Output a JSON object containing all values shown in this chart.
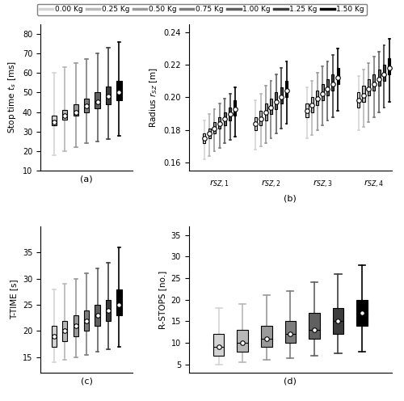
{
  "legend_labels": [
    "0.00 Kg",
    "0.25 Kg",
    "0.50 Kg",
    "0.75 Kg",
    "1.00 Kg",
    "1.25 Kg",
    "1.50 Kg"
  ],
  "colors": [
    "#d4d4d4",
    "#b8b8b8",
    "#9a9a9a",
    "#7d7d7d",
    "#606060",
    "#3c3c3c",
    "#000000"
  ],
  "subplot_a": {
    "ylabel": "Stop time $t_s$ [ms]",
    "ylim": [
      10,
      85
    ],
    "yticks": [
      10,
      20,
      30,
      40,
      50,
      60,
      70,
      80
    ],
    "xlabel": "(a)",
    "boxes": [
      {
        "median": 35,
        "q1": 33,
        "q3": 38,
        "whislo": 18,
        "whishi": 60,
        "mean": 35
      },
      {
        "median": 38,
        "q1": 36,
        "q3": 41,
        "whislo": 20,
        "whishi": 63,
        "mean": 38
      },
      {
        "median": 40,
        "q1": 38,
        "q3": 44,
        "whislo": 22,
        "whishi": 65,
        "mean": 40
      },
      {
        "median": 43,
        "q1": 40,
        "q3": 47,
        "whislo": 24,
        "whishi": 67,
        "mean": 43
      },
      {
        "median": 45,
        "q1": 42,
        "q3": 50,
        "whislo": 25,
        "whishi": 70,
        "mean": 45
      },
      {
        "median": 48,
        "q1": 44,
        "q3": 53,
        "whislo": 26,
        "whishi": 73,
        "mean": 48
      },
      {
        "median": 50,
        "q1": 46,
        "q3": 56,
        "whislo": 28,
        "whishi": 76,
        "mean": 50
      }
    ]
  },
  "subplot_b": {
    "ylabel": "Radius $r_{SZ}$ [m]",
    "ylim": [
      0.155,
      0.245
    ],
    "yticks": [
      0.16,
      0.18,
      0.2,
      0.22,
      0.24
    ],
    "xlabel": "(b)",
    "groups": [
      "$r_{SZ,1}$",
      "$r_{SZ,2}$",
      "$r_{SZ,3}$",
      "$r_{SZ,4}$"
    ],
    "group_boxes": [
      [
        {
          "median": 0.175,
          "q1": 0.172,
          "q3": 0.178,
          "whislo": 0.162,
          "whishi": 0.186,
          "mean": 0.175
        },
        {
          "median": 0.178,
          "q1": 0.175,
          "q3": 0.181,
          "whislo": 0.164,
          "whishi": 0.19,
          "mean": 0.178
        },
        {
          "median": 0.181,
          "q1": 0.178,
          "q3": 0.185,
          "whislo": 0.167,
          "whishi": 0.193,
          "mean": 0.181
        },
        {
          "median": 0.184,
          "q1": 0.181,
          "q3": 0.188,
          "whislo": 0.169,
          "whishi": 0.196,
          "mean": 0.184
        },
        {
          "median": 0.187,
          "q1": 0.183,
          "q3": 0.191,
          "whislo": 0.172,
          "whishi": 0.199,
          "mean": 0.187
        },
        {
          "median": 0.19,
          "q1": 0.186,
          "q3": 0.194,
          "whislo": 0.174,
          "whishi": 0.202,
          "mean": 0.19
        },
        {
          "median": 0.193,
          "q1": 0.189,
          "q3": 0.198,
          "whislo": 0.176,
          "whishi": 0.206,
          "mean": 0.193
        }
      ],
      [
        {
          "median": 0.184,
          "q1": 0.18,
          "q3": 0.188,
          "whislo": 0.168,
          "whishi": 0.198,
          "mean": 0.184
        },
        {
          "median": 0.187,
          "q1": 0.183,
          "q3": 0.192,
          "whislo": 0.17,
          "whishi": 0.202,
          "mean": 0.187
        },
        {
          "median": 0.191,
          "q1": 0.186,
          "q3": 0.196,
          "whislo": 0.172,
          "whishi": 0.207,
          "mean": 0.191
        },
        {
          "median": 0.194,
          "q1": 0.19,
          "q3": 0.199,
          "whislo": 0.175,
          "whishi": 0.21,
          "mean": 0.194
        },
        {
          "median": 0.197,
          "q1": 0.193,
          "q3": 0.203,
          "whislo": 0.178,
          "whishi": 0.214,
          "mean": 0.197
        },
        {
          "median": 0.2,
          "q1": 0.196,
          "q3": 0.206,
          "whislo": 0.181,
          "whishi": 0.218,
          "mean": 0.2
        },
        {
          "median": 0.204,
          "q1": 0.2,
          "q3": 0.21,
          "whislo": 0.184,
          "whishi": 0.222,
          "mean": 0.204
        }
      ],
      [
        {
          "median": 0.192,
          "q1": 0.188,
          "q3": 0.196,
          "whislo": 0.175,
          "whishi": 0.206,
          "mean": 0.192
        },
        {
          "median": 0.195,
          "q1": 0.191,
          "q3": 0.2,
          "whislo": 0.177,
          "whishi": 0.21,
          "mean": 0.195
        },
        {
          "median": 0.199,
          "q1": 0.195,
          "q3": 0.204,
          "whislo": 0.18,
          "whishi": 0.215,
          "mean": 0.199
        },
        {
          "median": 0.202,
          "q1": 0.198,
          "q3": 0.208,
          "whislo": 0.183,
          "whishi": 0.219,
          "mean": 0.202
        },
        {
          "median": 0.205,
          "q1": 0.201,
          "q3": 0.211,
          "whislo": 0.186,
          "whishi": 0.222,
          "mean": 0.205
        },
        {
          "median": 0.208,
          "q1": 0.204,
          "q3": 0.214,
          "whislo": 0.188,
          "whishi": 0.226,
          "mean": 0.208
        },
        {
          "median": 0.212,
          "q1": 0.208,
          "q3": 0.218,
          "whislo": 0.192,
          "whishi": 0.23,
          "mean": 0.212
        }
      ],
      [
        {
          "median": 0.198,
          "q1": 0.194,
          "q3": 0.203,
          "whislo": 0.18,
          "whishi": 0.213,
          "mean": 0.198
        },
        {
          "median": 0.201,
          "q1": 0.197,
          "q3": 0.207,
          "whislo": 0.182,
          "whishi": 0.217,
          "mean": 0.201
        },
        {
          "median": 0.205,
          "q1": 0.201,
          "q3": 0.211,
          "whislo": 0.185,
          "whishi": 0.221,
          "mean": 0.205
        },
        {
          "median": 0.208,
          "q1": 0.204,
          "q3": 0.214,
          "whislo": 0.188,
          "whishi": 0.225,
          "mean": 0.208
        },
        {
          "median": 0.211,
          "q1": 0.207,
          "q3": 0.217,
          "whislo": 0.191,
          "whishi": 0.228,
          "mean": 0.211
        },
        {
          "median": 0.214,
          "q1": 0.21,
          "q3": 0.22,
          "whislo": 0.194,
          "whishi": 0.232,
          "mean": 0.214
        },
        {
          "median": 0.218,
          "q1": 0.214,
          "q3": 0.224,
          "whislo": 0.197,
          "whishi": 0.236,
          "mean": 0.218
        }
      ]
    ]
  },
  "subplot_c": {
    "ylabel": "T-TIME [s]",
    "ylim": [
      12,
      40
    ],
    "yticks": [
      15,
      20,
      25,
      30,
      35
    ],
    "xlabel": "(c)",
    "boxes": [
      {
        "median": 19,
        "q1": 17,
        "q3": 21,
        "whislo": 14,
        "whishi": 28,
        "mean": 19
      },
      {
        "median": 20,
        "q1": 18,
        "q3": 22,
        "whislo": 14.5,
        "whishi": 29,
        "mean": 20
      },
      {
        "median": 21,
        "q1": 19,
        "q3": 23,
        "whislo": 15,
        "whishi": 30,
        "mean": 21
      },
      {
        "median": 22,
        "q1": 20,
        "q3": 24,
        "whislo": 15.5,
        "whishi": 31,
        "mean": 22
      },
      {
        "median": 23,
        "q1": 21,
        "q3": 25,
        "whislo": 16,
        "whishi": 32,
        "mean": 23
      },
      {
        "median": 24,
        "q1": 22,
        "q3": 26,
        "whislo": 16.5,
        "whishi": 33,
        "mean": 24
      },
      {
        "median": 25,
        "q1": 23,
        "q3": 28,
        "whislo": 17,
        "whishi": 36,
        "mean": 25
      }
    ]
  },
  "subplot_d": {
    "ylabel": "R-STOPS [no.]",
    "ylim": [
      3,
      37
    ],
    "yticks": [
      5,
      10,
      15,
      20,
      25,
      30,
      35
    ],
    "xlabel": "(d)",
    "boxes": [
      {
        "median": 9,
        "q1": 7,
        "q3": 12,
        "whislo": 5,
        "whishi": 18,
        "mean": 9
      },
      {
        "median": 10,
        "q1": 8,
        "q3": 13,
        "whislo": 5.5,
        "whishi": 19,
        "mean": 10
      },
      {
        "median": 11,
        "q1": 9,
        "q3": 14,
        "whislo": 6,
        "whishi": 21,
        "mean": 11
      },
      {
        "median": 12,
        "q1": 10,
        "q3": 15,
        "whislo": 6.5,
        "whishi": 22,
        "mean": 12
      },
      {
        "median": 13,
        "q1": 11,
        "q3": 17,
        "whislo": 7,
        "whishi": 24,
        "mean": 13
      },
      {
        "median": 15,
        "q1": 12,
        "q3": 18,
        "whislo": 7.5,
        "whishi": 26,
        "mean": 15
      },
      {
        "median": 17,
        "q1": 14,
        "q3": 20,
        "whislo": 8,
        "whishi": 28,
        "mean": 17
      }
    ]
  }
}
